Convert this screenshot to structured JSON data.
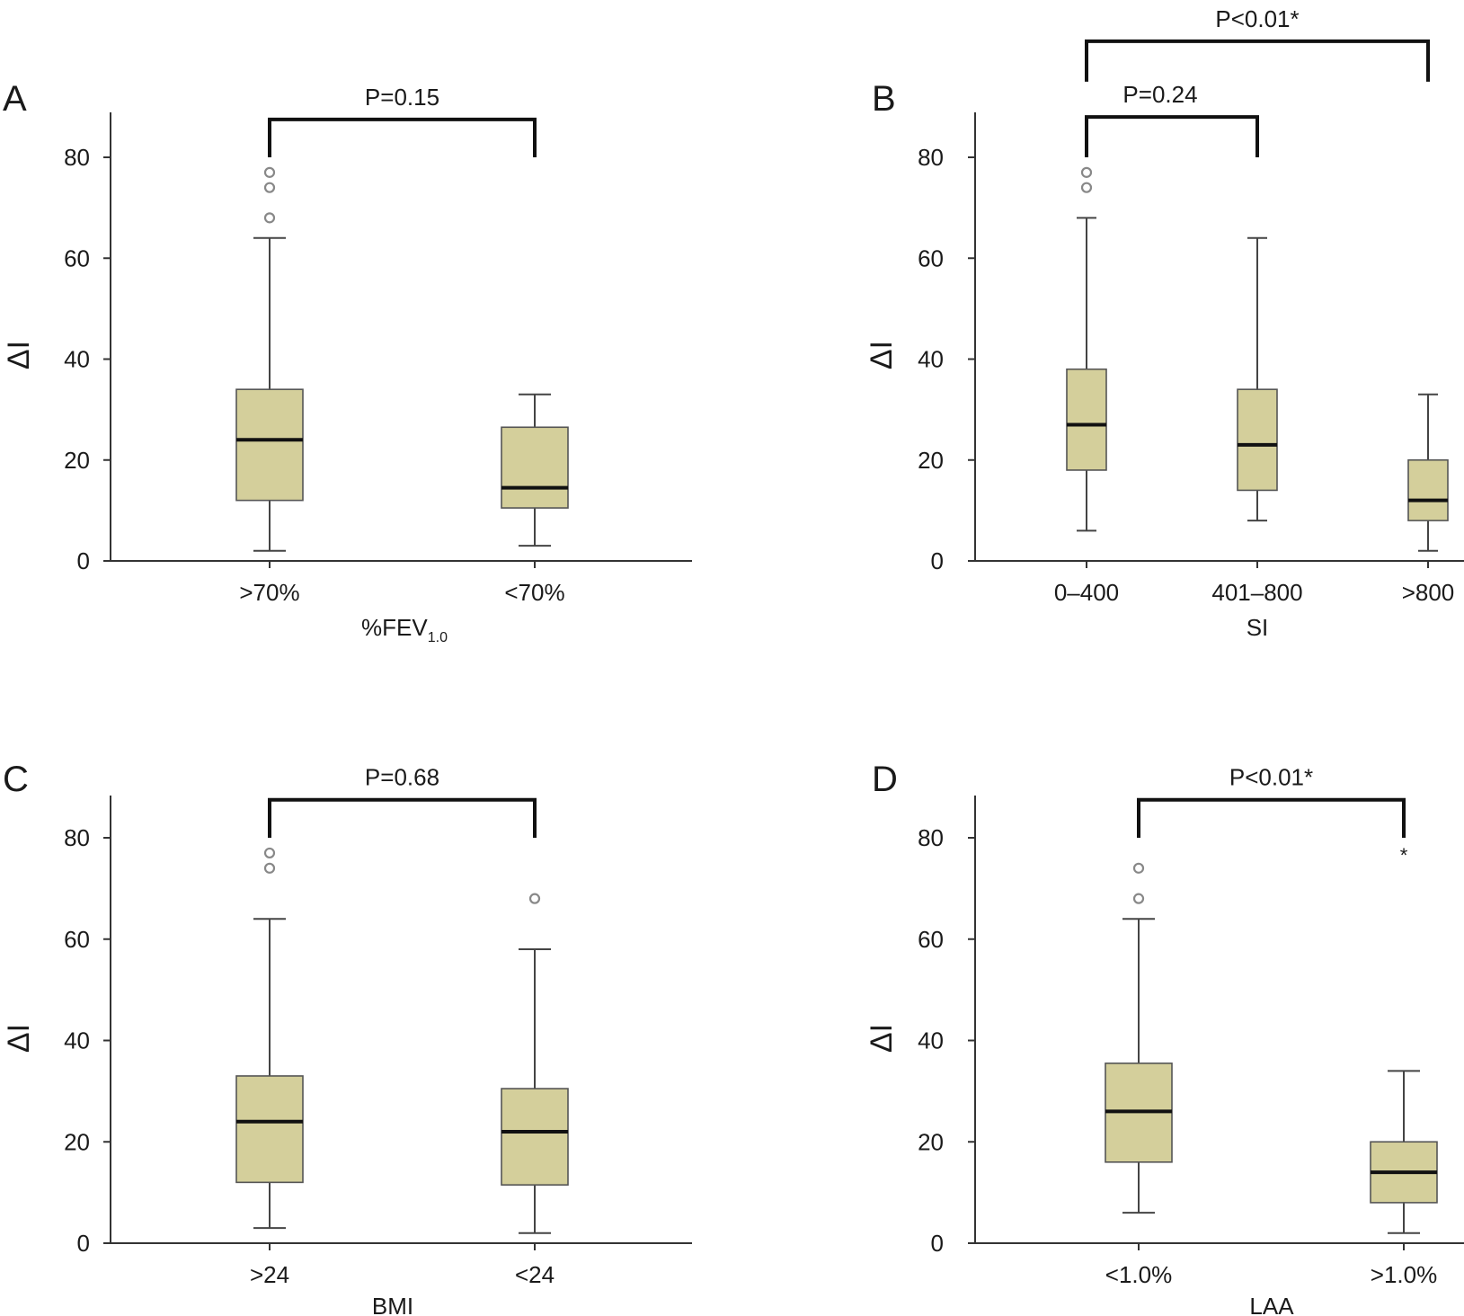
{
  "colors": {
    "box_fill": "#d4cf9b",
    "box_stroke": "#555555",
    "bracket": "#111111",
    "outlier": "#888888"
  },
  "chart_data": [
    {
      "type": "box",
      "panel_label": "A",
      "xlabel": "%FEV",
      "xlabel_sub": "1.0",
      "ylabel": "ΔI",
      "ylim": [
        0,
        88
      ],
      "yticks": [
        0,
        20,
        40,
        60,
        80
      ],
      "categories": [
        ">70%",
        "<70%"
      ],
      "boxes": [
        {
          "category": ">70%",
          "whisker_low": 2,
          "q1": 12,
          "median": 24,
          "q3": 34,
          "whisker_high": 64,
          "outliers": [
            68,
            74,
            77
          ],
          "extreme": []
        },
        {
          "category": "<70%",
          "whisker_low": 3,
          "q1": 10.5,
          "median": 14.5,
          "q3": 26.5,
          "whisker_high": 33,
          "outliers": [],
          "extreme": []
        }
      ],
      "comparisons": [
        {
          "from": 0,
          "to": 1,
          "label": "P=0.15",
          "level": 1
        }
      ]
    },
    {
      "type": "box",
      "panel_label": "B",
      "xlabel": "SI",
      "xlabel_sub": "",
      "ylabel": "ΔI",
      "ylim": [
        0,
        88
      ],
      "yticks": [
        0,
        20,
        40,
        60,
        80
      ],
      "categories": [
        "0–400",
        "401–800",
        ">800"
      ],
      "boxes": [
        {
          "category": "0–400",
          "whisker_low": 6,
          "q1": 18,
          "median": 27,
          "q3": 38,
          "whisker_high": 68,
          "outliers": [
            74,
            77
          ],
          "extreme": []
        },
        {
          "category": "401–800",
          "whisker_low": 8,
          "q1": 14,
          "median": 23,
          "q3": 34,
          "whisker_high": 64,
          "outliers": [],
          "extreme": []
        },
        {
          "category": ">800",
          "whisker_low": 2,
          "q1": 8,
          "median": 12,
          "q3": 20,
          "whisker_high": 33,
          "outliers": [],
          "extreme": []
        }
      ],
      "comparisons": [
        {
          "from": 0,
          "to": 1,
          "label": "P=0.24",
          "level": 1
        },
        {
          "from": 0,
          "to": 2,
          "label": "P<0.01*",
          "level": 2
        }
      ]
    },
    {
      "type": "box",
      "panel_label": "C",
      "xlabel": "BMI",
      "xlabel_sub": "",
      "ylabel": "ΔI",
      "ylim": [
        0,
        88
      ],
      "yticks": [
        0,
        20,
        40,
        60,
        80
      ],
      "categories": [
        ">24",
        "<24"
      ],
      "boxes": [
        {
          "category": ">24",
          "whisker_low": 3,
          "q1": 12,
          "median": 24,
          "q3": 33,
          "whisker_high": 64,
          "outliers": [
            74,
            77
          ],
          "extreme": []
        },
        {
          "category": "<24",
          "whisker_low": 2,
          "q1": 11.5,
          "median": 22,
          "q3": 30.5,
          "whisker_high": 58,
          "outliers": [
            68
          ],
          "extreme": []
        }
      ],
      "comparisons": [
        {
          "from": 0,
          "to": 1,
          "label": "P=0.68",
          "level": 1
        }
      ]
    },
    {
      "type": "box",
      "panel_label": "D",
      "xlabel": "LAA",
      "xlabel_sub": "",
      "ylabel": "ΔI",
      "ylim": [
        0,
        88
      ],
      "yticks": [
        0,
        20,
        40,
        60,
        80
      ],
      "categories": [
        "<1.0%",
        ">1.0%"
      ],
      "boxes": [
        {
          "category": "<1.0%",
          "whisker_low": 6,
          "q1": 16,
          "median": 26,
          "q3": 35.5,
          "whisker_high": 64,
          "outliers": [
            68,
            74
          ],
          "extreme": []
        },
        {
          "category": ">1.0%",
          "whisker_low": 2,
          "q1": 8,
          "median": 14,
          "q3": 20,
          "whisker_high": 34,
          "outliers": [],
          "extreme": [
            77
          ]
        }
      ],
      "comparisons": [
        {
          "from": 0,
          "to": 1,
          "label": "P<0.01*",
          "level": 1
        }
      ]
    }
  ]
}
